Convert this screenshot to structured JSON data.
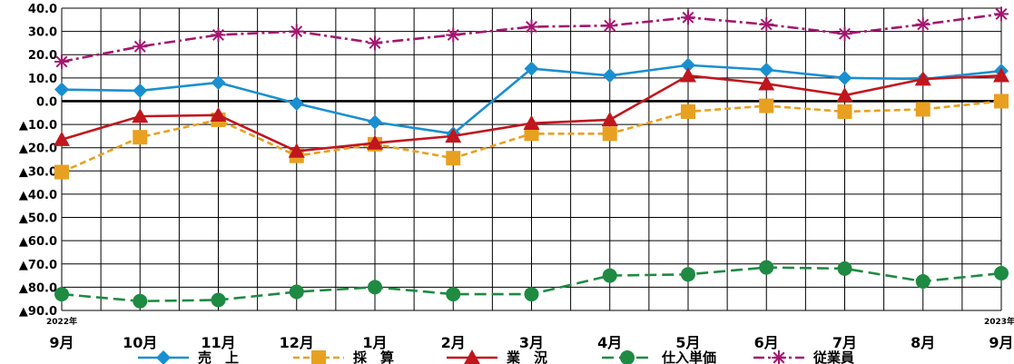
{
  "chart_data": {
    "type": "line",
    "title": "",
    "xlabel": "",
    "ylabel": "",
    "ylim": [
      -90,
      40
    ],
    "y_ticks": [
      40,
      30,
      20,
      10,
      0,
      -10,
      -20,
      -30,
      -40,
      -50,
      -60,
      -70,
      -80,
      -90
    ],
    "y_tick_labels": [
      "40.0",
      "30.0",
      "20.0",
      "10.0",
      "0.0",
      "▲10.0",
      "▲20.0",
      "▲30.0",
      "▲40.0",
      "▲50.0",
      "▲60.0",
      "▲70.0",
      "▲80.0",
      "▲90.0"
    ],
    "categories": [
      "9月",
      "10月",
      "11月",
      "12月",
      "1月",
      "2月",
      "3月",
      "4月",
      "5月",
      "6月",
      "7月",
      "8月",
      "9月"
    ],
    "year_labels": {
      "first": "2022年",
      "last": "2023年"
    },
    "grid": true,
    "legend_position": "bottom",
    "series": [
      {
        "name": "売　上",
        "color": "#1a8fd0",
        "marker": "diamond",
        "dash": "solid",
        "values": [
          5.0,
          4.5,
          8.0,
          -1.0,
          -9.0,
          -14.0,
          14.0,
          11.0,
          15.5,
          13.5,
          10.0,
          9.5,
          13.0
        ]
      },
      {
        "name": "採　算",
        "color": "#e8a020",
        "marker": "square",
        "dash": "dash-short",
        "values": [
          -30.5,
          -15.5,
          -8.0,
          -23.5,
          -18.5,
          -24.5,
          -14.0,
          -14.0,
          -4.5,
          -2.0,
          -4.5,
          -3.5,
          0.0
        ]
      },
      {
        "name": "業　況",
        "color": "#c0161e",
        "marker": "triangle",
        "dash": "solid",
        "values": [
          -16.5,
          -6.5,
          -6.0,
          -21.5,
          -18.0,
          -15.0,
          -9.5,
          -8.0,
          11.0,
          7.5,
          2.5,
          9.5,
          11.0
        ]
      },
      {
        "name": "仕入単価",
        "color": "#1e8a42",
        "marker": "circle",
        "dash": "dash-long",
        "values": [
          -83.0,
          -86.0,
          -85.5,
          -82.0,
          -80.0,
          -83.0,
          -83.0,
          -75.0,
          -74.5,
          -71.5,
          -72.0,
          -77.5,
          -74.0
        ]
      },
      {
        "name": "従業員",
        "color": "#a3176f",
        "marker": "star",
        "dash": "dash-dot",
        "values": [
          17.0,
          23.5,
          28.5,
          30.0,
          25.0,
          28.5,
          32.0,
          32.5,
          36.0,
          33.0,
          29.0,
          33.0,
          37.5
        ]
      }
    ]
  }
}
